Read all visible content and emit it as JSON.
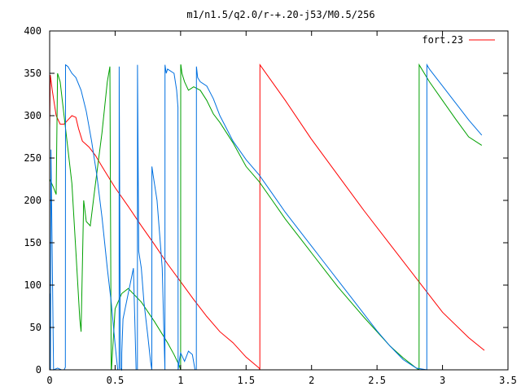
{
  "chart_data": {
    "type": "line",
    "title": "m1/n1.5/q2.0/r-+.20-j53/M0.5/256",
    "xlabel": "",
    "ylabel": "",
    "xlim": [
      0,
      3.5
    ],
    "ylim": [
      0,
      400
    ],
    "x_ticks": [
      0,
      0.5,
      1,
      1.5,
      2,
      2.5,
      3,
      3.5
    ],
    "x_tick_labels": [
      "0",
      "0.5",
      "1",
      "1.5",
      "2",
      "2.5",
      "3",
      "3.5"
    ],
    "y_ticks": [
      0,
      50,
      100,
      150,
      200,
      250,
      300,
      350,
      400
    ],
    "y_tick_labels": [
      "0",
      "50",
      "100",
      "150",
      "200",
      "250",
      "300",
      "350",
      "400"
    ],
    "grid": false,
    "legend": {
      "position": "top-right",
      "entries": [
        "fort.23"
      ]
    },
    "series": [
      {
        "name": "fort.23",
        "color": "#ff0000",
        "x": [
          0,
          0.005,
          0.02,
          0.05,
          0.08,
          0.11,
          0.14,
          0.17,
          0.2,
          0.22,
          0.25,
          0.3,
          0.35,
          0.4,
          0.5,
          0.6,
          0.7,
          0.8,
          0.9,
          1.0,
          1.1,
          1.2,
          1.3,
          1.4,
          1.5,
          1.6,
          1.605,
          1.606,
          1.8,
          2.0,
          2.2,
          2.4,
          2.6,
          2.8,
          3.0,
          3.2,
          3.32
        ],
        "y": [
          285,
          348,
          330,
          300,
          290,
          290,
          295,
          300,
          298,
          285,
          270,
          263,
          253,
          240,
          215,
          193,
          170,
          148,
          125,
          104,
          83,
          63,
          45,
          32,
          15,
          2,
          0,
          360,
          318,
          272,
          230,
          188,
          148,
          108,
          68,
          38,
          23
        ]
      },
      {
        "name": "",
        "color": "#00a000",
        "x": [
          0,
          0.01,
          0.03,
          0.05,
          0.06,
          0.08,
          0.11,
          0.14,
          0.17,
          0.2,
          0.23,
          0.24,
          0.26,
          0.28,
          0.31,
          0.35,
          0.4,
          0.44,
          0.46,
          0.47,
          0.471,
          0.472,
          0.5,
          0.55,
          0.6,
          0.65,
          0.7,
          0.8,
          0.9,
          0.95,
          0.99,
          1.0,
          1.001,
          1.002,
          1.01,
          1.03,
          1.06,
          1.1,
          1.15,
          1.2,
          1.25,
          1.3,
          1.4,
          1.5,
          1.6,
          1.7,
          1.8,
          1.9,
          2.0,
          2.1,
          2.2,
          2.3,
          2.4,
          2.5,
          2.6,
          2.7,
          2.8,
          2.82,
          2.821,
          2.822,
          2.9,
          3.0,
          3.1,
          3.2,
          3.3
        ],
        "y": [
          225,
          222,
          215,
          207,
          350,
          340,
          300,
          260,
          220,
          140,
          60,
          45,
          200,
          175,
          170,
          220,
          280,
          340,
          358,
          0,
          0,
          0,
          72,
          90,
          96,
          88,
          80,
          57,
          32,
          18,
          5,
          0,
          360,
          360,
          350,
          340,
          330,
          334,
          330,
          318,
          302,
          292,
          268,
          240,
          222,
          200,
          178,
          158,
          138,
          118,
          98,
          80,
          62,
          45,
          28,
          14,
          2,
          0,
          0,
          360,
          340,
          318,
          296,
          275,
          265
        ]
      },
      {
        "name": "",
        "color": "#0070e0",
        "x": [
          0,
          0.003,
          0.006,
          0.01,
          0.03,
          0.06,
          0.09,
          0.11,
          0.12,
          0.121,
          0.14,
          0.17,
          0.2,
          0.24,
          0.28,
          0.32,
          0.36,
          0.4,
          0.44,
          0.47,
          0.5,
          0.52,
          0.53,
          0.531,
          0.54,
          0.55,
          0.551,
          0.56,
          0.6,
          0.64,
          0.66,
          0.67,
          0.671,
          0.68,
          0.7,
          0.72,
          0.75,
          0.77,
          0.78,
          0.781,
          0.79,
          0.82,
          0.86,
          0.87,
          0.88,
          0.881,
          0.89,
          0.9,
          0.95,
          0.97,
          0.98,
          0.981,
          0.99,
          1.0,
          1.03,
          1.06,
          1.09,
          1.11,
          1.12,
          1.121,
          1.13,
          1.15,
          1.2,
          1.25,
          1.3,
          1.35,
          1.4,
          1.5,
          1.6,
          1.7,
          1.8,
          1.9,
          2.0,
          2.1,
          2.2,
          2.3,
          2.4,
          2.5,
          2.6,
          2.7,
          2.8,
          2.88,
          2.881,
          2.9,
          3.0,
          3.1,
          3.2,
          3.3
        ],
        "y": [
          0,
          90,
          0,
          260,
          0,
          2,
          0,
          0,
          3,
          360,
          358,
          350,
          345,
          330,
          305,
          270,
          230,
          180,
          120,
          80,
          30,
          0,
          0,
          358,
          2,
          0,
          20,
          60,
          90,
          120,
          0,
          0,
          360,
          140,
          120,
          80,
          40,
          10,
          0,
          240,
          230,
          200,
          120,
          60,
          0,
          360,
          350,
          355,
          350,
          330,
          310,
          0,
          10,
          20,
          10,
          22,
          18,
          0,
          0,
          358,
          345,
          340,
          335,
          320,
          300,
          285,
          270,
          248,
          230,
          208,
          186,
          166,
          146,
          126,
          106,
          86,
          66,
          46,
          28,
          12,
          2,
          0,
          360,
          355,
          335,
          315,
          295,
          277
        ]
      }
    ]
  }
}
